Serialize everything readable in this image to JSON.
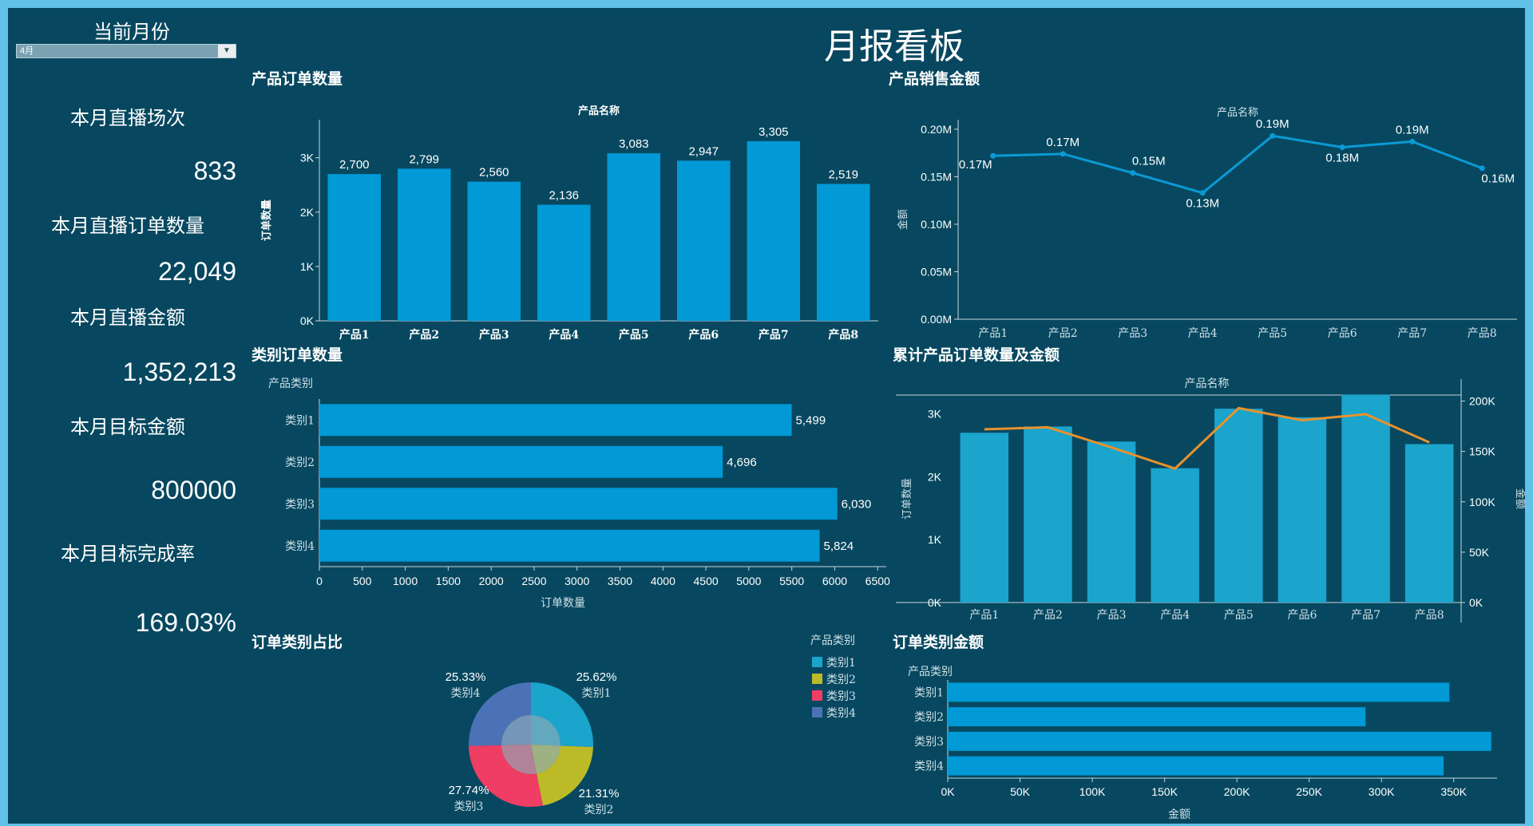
{
  "header": {
    "title": "月报看板"
  },
  "filter": {
    "label": "当前月份",
    "selected": "4月"
  },
  "kpis": [
    {
      "label": "本月直播场次",
      "value": "833"
    },
    {
      "label": "本月直播订单数量",
      "value": "22,049"
    },
    {
      "label": "本月直播金额",
      "value": "1,352,213"
    },
    {
      "label": "本月目标金额",
      "value": "800000"
    },
    {
      "label": "本月目标完成率",
      "value": "169.03%"
    }
  ],
  "colors": {
    "bar": "#0199d6",
    "bar_alt": "#1ba4cc",
    "line": "#0a9ad4",
    "orange": "#e8922c",
    "bg": "#074860"
  },
  "chart_data": [
    {
      "id": "product_orders",
      "type": "bar",
      "title": "产品订单数量",
      "xlabel": "产品名称",
      "ylabel": "订单数量",
      "categories": [
        "产品1",
        "产品2",
        "产品3",
        "产品4",
        "产品5",
        "产品6",
        "产品7",
        "产品8"
      ],
      "values": [
        2700,
        2799,
        2560,
        2136,
        3083,
        2947,
        3305,
        2519
      ],
      "data_labels": [
        "2,700",
        "2,799",
        "2,560",
        "2,136",
        "3,083",
        "2,947",
        "3,305",
        "2,519"
      ],
      "yticks": [
        "0K",
        "1K",
        "2K",
        "3K"
      ],
      "ylim": [
        0,
        3700
      ]
    },
    {
      "id": "product_sales",
      "type": "line",
      "title": "产品销售金额",
      "xlabel": "产品名称",
      "ylabel": "金额",
      "categories": [
        "产品1",
        "产品2",
        "产品3",
        "产品4",
        "产品5",
        "产品6",
        "产品7",
        "产品8"
      ],
      "values": [
        0.172,
        0.174,
        0.154,
        0.133,
        0.193,
        0.181,
        0.187,
        0.159
      ],
      "data_labels": [
        "0.17M",
        "0.17M",
        "0.15M",
        "0.13M",
        "0.19M",
        "0.18M",
        "0.19M",
        "0.16M"
      ],
      "yticks": [
        "0.00M",
        "0.05M",
        "0.10M",
        "0.15M",
        "0.20M"
      ],
      "ylim": [
        0,
        0.21
      ]
    },
    {
      "id": "category_orders",
      "type": "bar",
      "orientation": "horizontal",
      "title": "类别订单数量",
      "xlabel": "订单数量",
      "ylabel": "产品类别",
      "categories": [
        "类别1",
        "类别2",
        "类别3",
        "类别4"
      ],
      "values": [
        5499,
        4696,
        6030,
        5824
      ],
      "data_labels": [
        "5,499",
        "4,696",
        "6,030",
        "5,824"
      ],
      "xticks": [
        "0",
        "500",
        "1000",
        "1500",
        "2000",
        "2500",
        "3000",
        "3500",
        "4000",
        "4500",
        "5000",
        "5500",
        "6000",
        "6500"
      ],
      "xlim": [
        0,
        6600
      ]
    },
    {
      "id": "cumulative",
      "type": "bar",
      "title": "累计产品订单数量及金额",
      "xlabel": "产品名称",
      "ylabel": "订单数量",
      "y2label": "金额",
      "categories": [
        "产品1",
        "产品2",
        "产品3",
        "产品4",
        "产品5",
        "产品6",
        "产品7",
        "产品8"
      ],
      "series": [
        {
          "name": "订单数量",
          "type": "bar",
          "values": [
            2700,
            2799,
            2560,
            2136,
            3083,
            2947,
            3305,
            2519
          ]
        },
        {
          "name": "金额",
          "type": "line",
          "axis": "right",
          "values": [
            172000,
            174000,
            154000,
            133000,
            193000,
            181000,
            187000,
            159000
          ]
        }
      ],
      "yticks": [
        "0K",
        "1K",
        "2K",
        "3K"
      ],
      "ylim": [
        0,
        3300
      ],
      "y2ticks": [
        "0K",
        "50K",
        "100K",
        "150K",
        "200K"
      ],
      "y2lim": [
        0,
        206000
      ]
    },
    {
      "id": "order_share",
      "type": "pie",
      "title": "订单类别占比",
      "legend_title": "产品类别",
      "categories": [
        "类别1",
        "类别2",
        "类别3",
        "类别4"
      ],
      "values": [
        25.62,
        21.31,
        27.74,
        25.33
      ],
      "data_labels": [
        "25.62%",
        "21.31%",
        "27.74%",
        "25.33%"
      ],
      "colors": [
        "#1ba4cc",
        "#bcbb27",
        "#ef3d64",
        "#4b72b6"
      ]
    },
    {
      "id": "category_amount",
      "type": "bar",
      "orientation": "horizontal",
      "title": "订单类别金额",
      "xlabel": "金额",
      "ylabel": "产品类别",
      "categories": [
        "类别1",
        "类别2",
        "类别3",
        "类别4"
      ],
      "values": [
        347000,
        289000,
        376000,
        343000
      ],
      "xticks": [
        "0K",
        "50K",
        "100K",
        "150K",
        "200K",
        "250K",
        "300K",
        "350K"
      ],
      "xlim": [
        0,
        380000
      ]
    }
  ]
}
